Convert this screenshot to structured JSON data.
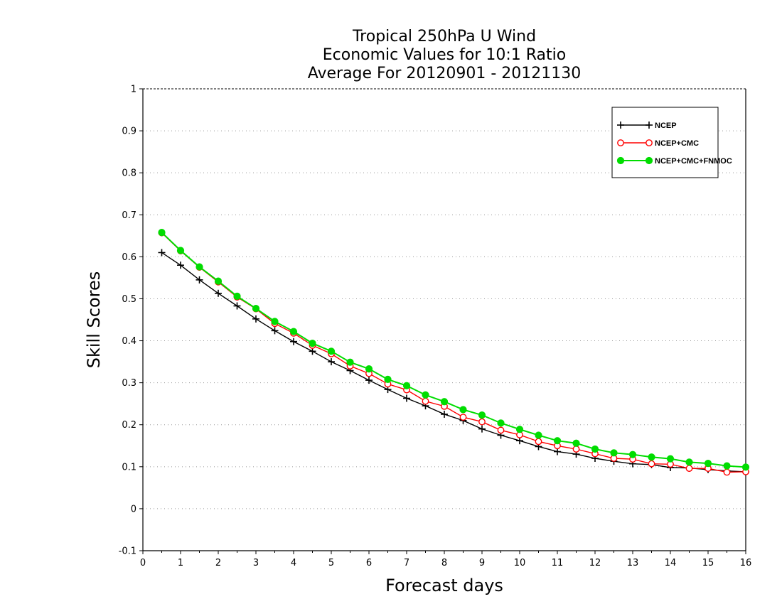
{
  "chart_data": {
    "type": "line",
    "title_lines": [
      "Tropical 250hPa U Wind",
      "Economic Values for 10:1 Ratio",
      "Average For 20120901 - 20121130"
    ],
    "xlabel": "Forecast days",
    "ylabel": "Skill Scores",
    "xlim": [
      0,
      16
    ],
    "ylim": [
      -0.1,
      1
    ],
    "xticks": [
      0,
      1,
      2,
      3,
      4,
      5,
      6,
      7,
      8,
      9,
      10,
      11,
      12,
      13,
      14,
      15,
      16
    ],
    "xtick_labels": [
      "0",
      "1",
      "2",
      "3",
      "4",
      "5",
      "6",
      "7",
      "8",
      "9",
      "10",
      "11",
      "12",
      "13",
      "14",
      "15",
      "16"
    ],
    "yticks": [
      -0.1,
      0,
      0.1,
      0.2,
      0.3,
      0.4,
      0.5,
      0.6,
      0.7,
      0.8,
      0.9,
      1
    ],
    "ytick_labels": [
      "-0.1",
      "0",
      "0.1",
      "0.2",
      "0.3",
      "0.4",
      "0.5",
      "0.6",
      "0.7",
      "0.8",
      "0.9",
      "1"
    ],
    "grid": "horizontal-dotted",
    "legend_position": "top-right",
    "x": [
      0.5,
      1,
      1.5,
      2,
      2.5,
      3,
      3.5,
      4,
      4.5,
      5,
      5.5,
      6,
      6.5,
      7,
      7.5,
      8,
      8.5,
      9,
      9.5,
      10,
      10.5,
      11,
      11.5,
      12,
      12.5,
      13,
      13.5,
      14,
      14.5,
      15,
      15.5,
      16
    ],
    "series": [
      {
        "name": "NCEP",
        "color": "#000000",
        "marker": "plus",
        "values": [
          0.61,
          0.58,
          0.545,
          0.513,
          0.483,
          0.452,
          0.424,
          0.398,
          0.375,
          0.35,
          0.329,
          0.306,
          0.284,
          0.263,
          0.245,
          0.225,
          0.21,
          0.19,
          0.175,
          0.162,
          0.148,
          0.136,
          0.13,
          0.12,
          0.113,
          0.107,
          0.105,
          0.098,
          0.097,
          0.093,
          0.09,
          0.088
        ]
      },
      {
        "name": "NCEP+CMC",
        "color": "#ff0000",
        "marker": "open-circle",
        "values": [
          0.657,
          0.614,
          0.575,
          0.54,
          0.504,
          0.476,
          0.441,
          0.418,
          0.389,
          0.369,
          0.34,
          0.322,
          0.297,
          0.283,
          0.256,
          0.244,
          0.218,
          0.207,
          0.187,
          0.176,
          0.16,
          0.15,
          0.142,
          0.131,
          0.12,
          0.118,
          0.107,
          0.106,
          0.096,
          0.096,
          0.087,
          0.088
        ]
      },
      {
        "name": "NCEP+CMC+FNMOC",
        "color": "#00dd00",
        "marker": "filled-circle",
        "values": [
          0.658,
          0.615,
          0.576,
          0.542,
          0.506,
          0.477,
          0.446,
          0.422,
          0.394,
          0.375,
          0.349,
          0.333,
          0.308,
          0.293,
          0.271,
          0.255,
          0.236,
          0.223,
          0.204,
          0.189,
          0.175,
          0.162,
          0.156,
          0.142,
          0.133,
          0.129,
          0.123,
          0.119,
          0.111,
          0.108,
          0.102,
          0.099
        ]
      }
    ]
  }
}
